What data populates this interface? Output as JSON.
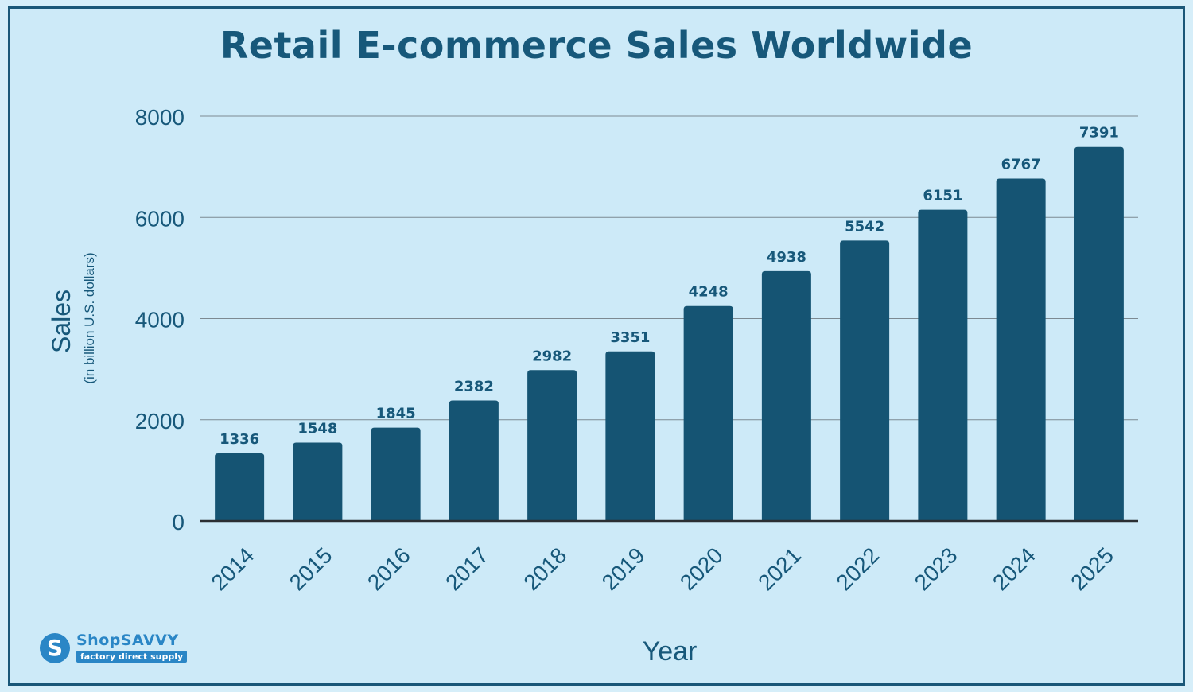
{
  "chart_data": {
    "type": "bar",
    "title": "Retail E-commerce Sales Worldwide",
    "xlabel": "Year",
    "ylabel": "Sales",
    "ylabel_sub": "(in billion U.S. dollars)",
    "categories": [
      "2014",
      "2015",
      "2016",
      "2017",
      "2018",
      "2019",
      "2020",
      "2021",
      "2022",
      "2023",
      "2024",
      "2025"
    ],
    "values": [
      1336,
      1548,
      1845,
      2382,
      2982,
      3351,
      4248,
      4938,
      5542,
      6151,
      6767,
      7391
    ],
    "ylim": [
      0,
      8000
    ],
    "yticks": [
      0,
      2000,
      4000,
      6000,
      8000
    ],
    "grid": true,
    "colors": {
      "bar": "#155473",
      "text": "#17587a",
      "grid": "#7d8a92",
      "background": "#cdeaf8"
    }
  },
  "logo": {
    "name": "ShopSAVVY",
    "tagline": "factory direct supply",
    "icon": "s-logo-icon"
  }
}
